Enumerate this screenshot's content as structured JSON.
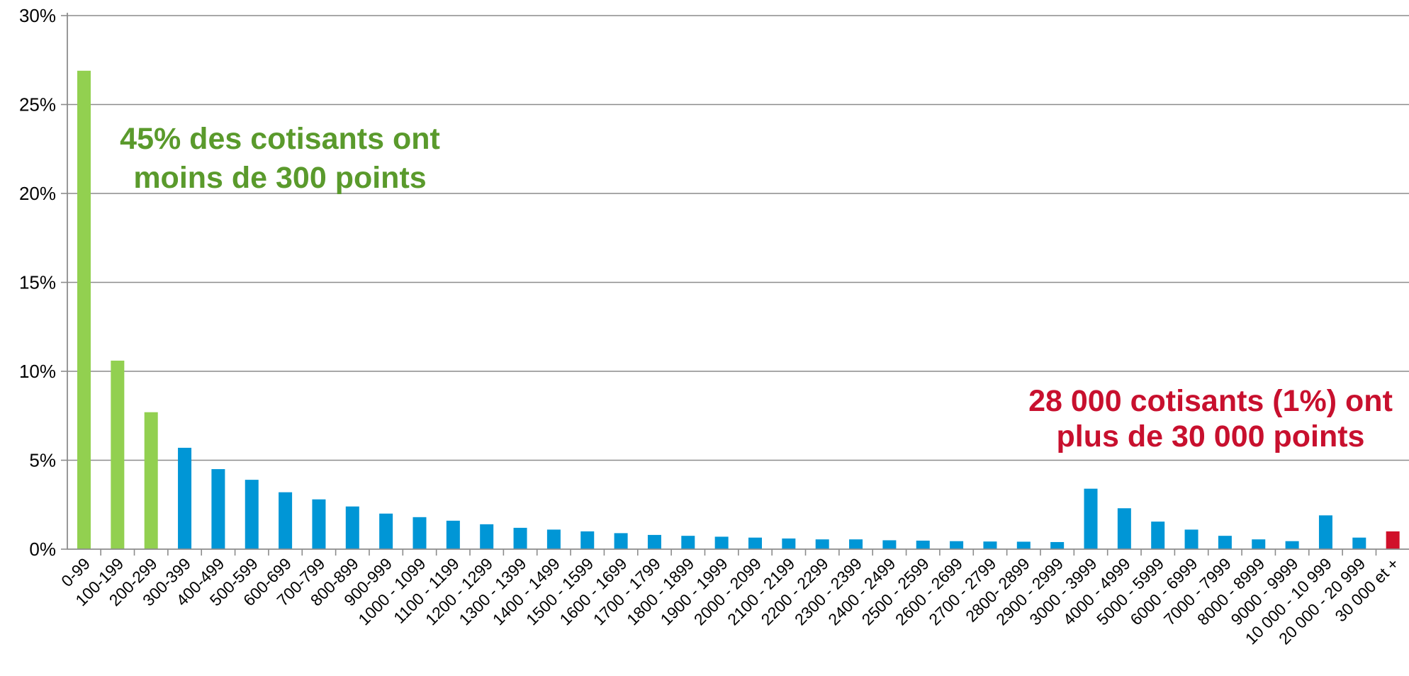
{
  "chart_data": {
    "type": "bar",
    "ylim": [
      0,
      30
    ],
    "yticks": [
      "0%",
      "5%",
      "10%",
      "15%",
      "20%",
      "25%",
      "30%"
    ],
    "ytick_values": [
      0,
      5,
      10,
      15,
      20,
      25,
      30
    ],
    "grid": true,
    "categories": [
      "0-99",
      "100-199",
      "200-299",
      "300-399",
      "400-499",
      "500-599",
      "600-699",
      "700-799",
      "800-899",
      "900-999",
      "1000 - 1099",
      "1100 - 1199",
      "1200 - 1299",
      "1300 - 1399",
      "1400 - 1499",
      "1500 - 1599",
      "1600 - 1699",
      "1700 - 1799",
      "1800 - 1899",
      "1900 - 1999",
      "2000 - 2099",
      "2100 - 2199",
      "2200 - 2299",
      "2300 - 2399",
      "2400 - 2499",
      "2500 - 2599",
      "2600 - 2699",
      "2700 - 2799",
      "2800- 2899",
      "2900 - 2999",
      "3000 - 3999",
      "4000 - 4999",
      "5000 - 5999",
      "6000 - 6999",
      "7000 - 7999",
      "8000 - 8999",
      "9000 - 9999",
      "10 000 - 10 999",
      "20 000 - 20 999",
      "30 000 et +"
    ],
    "values": [
      26.9,
      10.6,
      7.7,
      5.7,
      4.5,
      3.9,
      3.2,
      2.8,
      2.4,
      2.0,
      1.8,
      1.6,
      1.4,
      1.2,
      1.1,
      1.0,
      0.9,
      0.8,
      0.75,
      0.7,
      0.65,
      0.6,
      0.55,
      0.55,
      0.5,
      0.48,
      0.45,
      0.43,
      0.42,
      0.4,
      3.4,
      2.3,
      1.55,
      1.1,
      0.75,
      0.55,
      0.45,
      1.9,
      0.65,
      1.0
    ],
    "bar_colors": [
      "#92d050",
      "#92d050",
      "#92d050",
      "#0096d6",
      "#0096d6",
      "#0096d6",
      "#0096d6",
      "#0096d6",
      "#0096d6",
      "#0096d6",
      "#0096d6",
      "#0096d6",
      "#0096d6",
      "#0096d6",
      "#0096d6",
      "#0096d6",
      "#0096d6",
      "#0096d6",
      "#0096d6",
      "#0096d6",
      "#0096d6",
      "#0096d6",
      "#0096d6",
      "#0096d6",
      "#0096d6",
      "#0096d6",
      "#0096d6",
      "#0096d6",
      "#0096d6",
      "#0096d6",
      "#0096d6",
      "#0096d6",
      "#0096d6",
      "#0096d6",
      "#0096d6",
      "#0096d6",
      "#0096d6",
      "#0096d6",
      "#0096d6",
      "#d0102a"
    ],
    "annotations": [
      {
        "lines": [
          "45% des cotisants ont",
          "moins de 300 points"
        ],
        "color": "#5a9a2c"
      },
      {
        "lines": [
          "28 000 cotisants (1%) ont",
          "plus de 30 000 points"
        ],
        "color": "#c8102e"
      }
    ]
  }
}
